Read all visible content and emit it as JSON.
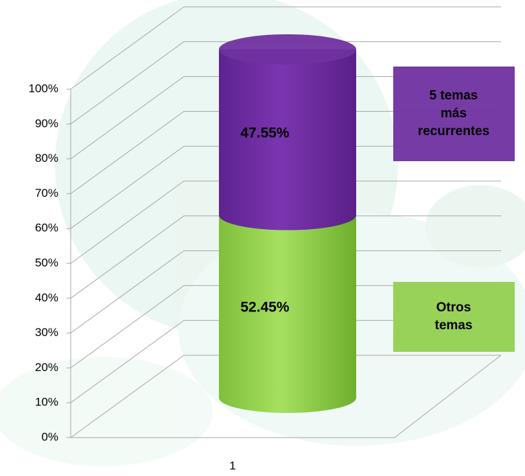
{
  "chart_data": {
    "type": "cylinder-stacked-bar",
    "categories": [
      "1"
    ],
    "series": [
      {
        "name": "Otros temas",
        "color": "#92d050",
        "values": [
          52.45
        ],
        "value_labels": [
          "52.45%"
        ]
      },
      {
        "name": "5 temas más recurrentes",
        "color": "#7030a0",
        "values": [
          47.55
        ],
        "value_labels": [
          "47.55%"
        ]
      }
    ],
    "ylim": [
      0,
      100
    ],
    "yticks": [
      {
        "value": 0,
        "label": "0%"
      },
      {
        "value": 10,
        "label": "10%"
      },
      {
        "value": 20,
        "label": "20%"
      },
      {
        "value": 30,
        "label": "30%"
      },
      {
        "value": 40,
        "label": "40%"
      },
      {
        "value": 50,
        "label": "50%"
      },
      {
        "value": 60,
        "label": "60%"
      },
      {
        "value": 70,
        "label": "70%"
      },
      {
        "value": 80,
        "label": "80%"
      },
      {
        "value": 90,
        "label": "90%"
      },
      {
        "value": 100,
        "label": "100%"
      }
    ],
    "grid": true,
    "legend_position": "right"
  }
}
